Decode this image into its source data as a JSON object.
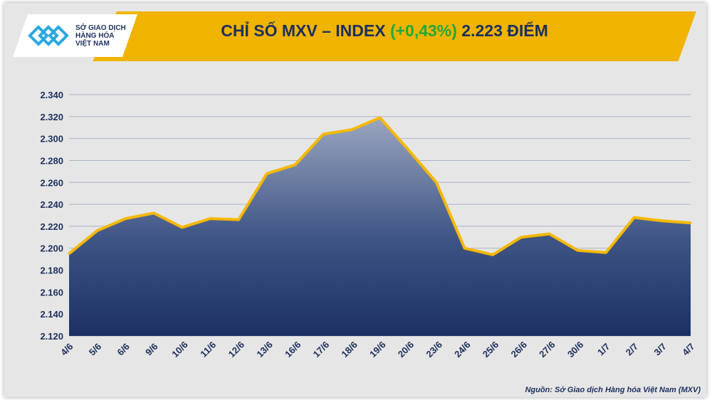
{
  "header": {
    "title_prefix": "CHỈ SỐ MXV – INDEX ",
    "change": "(+0,43%)",
    "title_suffix": " 2.223 ĐIỂM",
    "logo_text": [
      "SỞ GIAO DỊCH",
      "HÀNG HÓA",
      "VIỆT NAM"
    ]
  },
  "footer": {
    "source": "Nguồn: Sở Giao dịch Hàng hóa Việt Nam (MXV)"
  },
  "colors": {
    "line": "#f5b800",
    "area_top": "#9aa6c0",
    "area_bottom": "#1c3064",
    "positive": "#22a83b",
    "title": "#1b2f5e"
  },
  "chart_data": {
    "type": "area",
    "title": "CHỈ SỐ MXV – INDEX (+0,43%) 2.223 ĐIỂM",
    "categories": [
      "4/6",
      "5/6",
      "6/6",
      "9/6",
      "10/6",
      "11/6",
      "12/6",
      "13/6",
      "16/6",
      "17/6",
      "18/6",
      "19/6",
      "20/6",
      "23/6",
      "24/6",
      "25/6",
      "26/6",
      "27/6",
      "30/6",
      "1/7",
      "2/7",
      "3/7",
      "4/7"
    ],
    "values": [
      2195,
      2216,
      2227,
      2232,
      2219,
      2227,
      2226,
      2268,
      2276,
      2304,
      2308,
      2319,
      2290,
      2260,
      2200,
      2194,
      2210,
      2213,
      2198,
      2196,
      2228,
      2225,
      2223
    ],
    "ylim": [
      2120,
      2340
    ],
    "yticks": [
      "2.120",
      "2.140",
      "2.160",
      "2.180",
      "2.200",
      "2.220",
      "2.240",
      "2.260",
      "2.280",
      "2.300",
      "2.320",
      "2.340"
    ],
    "grid": true,
    "legend": "none"
  }
}
